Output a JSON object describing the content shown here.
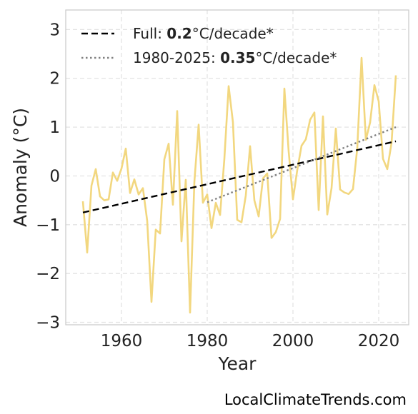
{
  "chart_data": {
    "type": "line",
    "xlabel": "Year",
    "ylabel": "Anomaly (°C)",
    "xlim": [
      1947,
      2027
    ],
    "ylim": [
      -3.05,
      3.4
    ],
    "x_ticks": [
      1960,
      1980,
      2000,
      2020
    ],
    "x_tick_labels": [
      "1960",
      "1980",
      "2000",
      "2020"
    ],
    "y_ticks": [
      -3,
      -2,
      -1,
      0,
      1,
      2,
      3
    ],
    "y_tick_labels": [
      "−3",
      "−2",
      "−1",
      "0",
      "1",
      "2",
      "3"
    ],
    "grid": true,
    "legend_position": "top-left",
    "series": [
      {
        "x": [
          1951,
          1952,
          1953,
          1954,
          1955,
          1956,
          1957,
          1958,
          1959,
          1960,
          1961,
          1962,
          1963,
          1964,
          1965,
          1966,
          1967,
          1968,
          1969,
          1970,
          1971,
          1972,
          1973,
          1974,
          1975,
          1976,
          1977,
          1978,
          1979,
          1980,
          1981,
          1982,
          1983,
          1984,
          1985,
          1986,
          1987,
          1988,
          1989,
          1990,
          1991,
          1992,
          1993,
          1994,
          1995,
          1996,
          1997,
          1998,
          1999,
          2000,
          2001,
          2002,
          2003,
          2004,
          2005,
          2006,
          2007,
          2008,
          2009,
          2010,
          2011,
          2012,
          2013,
          2014,
          2015,
          2016,
          2017,
          2018,
          2019,
          2020,
          2021,
          2022,
          2023,
          2024
        ],
        "values": [
          -0.52,
          -1.57,
          -0.2,
          0.14,
          -0.42,
          -0.5,
          -0.48,
          0.07,
          -0.1,
          0.15,
          0.56,
          -0.35,
          -0.07,
          -0.38,
          -0.25,
          -0.92,
          -2.58,
          -1.1,
          -1.18,
          0.34,
          0.66,
          -0.59,
          1.33,
          -1.34,
          -0.08,
          -2.8,
          -0.13,
          1.05,
          -0.55,
          -0.38,
          -1.07,
          -0.55,
          -0.8,
          0.35,
          1.84,
          1.1,
          -0.9,
          -0.95,
          -0.4,
          0.61,
          -0.5,
          -0.83,
          -0.05,
          0.05,
          -1.27,
          -1.15,
          -0.88,
          1.79,
          0.5,
          -0.48,
          0.12,
          0.62,
          0.75,
          1.15,
          1.3,
          -0.7,
          1.22,
          -0.79,
          -0.25,
          0.97,
          -0.28,
          -0.34,
          -0.37,
          -0.27,
          0.57,
          2.42,
          0.74,
          1.1,
          1.86,
          1.53,
          0.35,
          0.14,
          0.68,
          2.06
        ],
        "color": "#f2d77f"
      }
    ],
    "trend_lines": [
      {
        "label_prefix": "Full: ",
        "label_value": "0.2",
        "label_suffix": "°C/decade*",
        "x": [
          1951,
          2024
        ],
        "y": [
          -0.75,
          0.71
        ],
        "style": "dashed",
        "color": "#000000"
      },
      {
        "label_prefix": "1980-2025: ",
        "label_value": "0.35",
        "label_suffix": "°C/decade*",
        "x": [
          1980,
          2024
        ],
        "y": [
          -0.54,
          1.0
        ],
        "style": "dotted",
        "color": "#808080"
      }
    ]
  },
  "footer": {
    "credit": "LocalClimateTrends.com"
  }
}
